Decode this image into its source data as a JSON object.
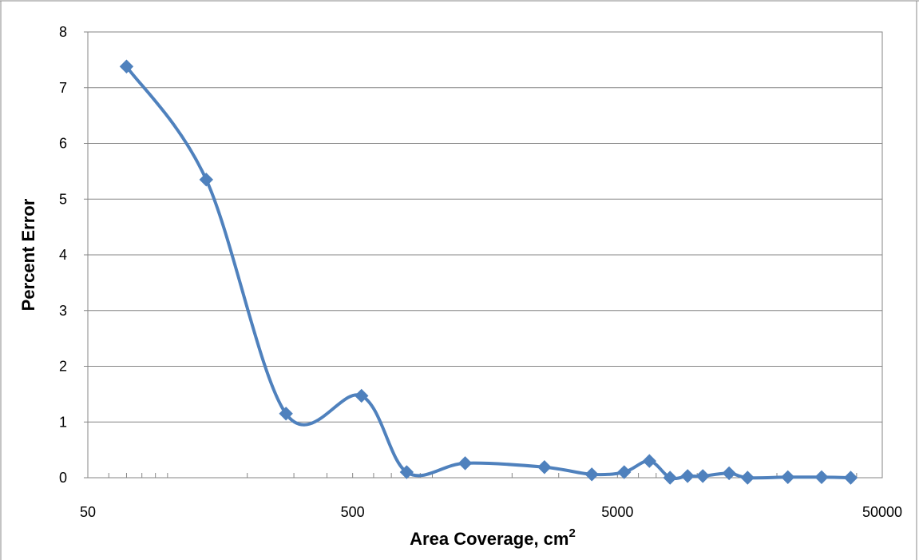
{
  "chart_data": {
    "type": "line",
    "xlabel": "Area Coverage, cm",
    "xlabel_superscript": "2",
    "ylabel": "Percent Error",
    "x_scale": "log",
    "xlim": [
      50,
      50000
    ],
    "ylim": [
      0,
      8
    ],
    "x_ticks": [
      {
        "value": 50,
        "label": "50"
      },
      {
        "value": 500,
        "label": "500"
      },
      {
        "value": 5000,
        "label": "5000"
      },
      {
        "value": 50000,
        "label": "50000"
      }
    ],
    "y_ticks": [
      {
        "value": 0,
        "label": "0"
      },
      {
        "value": 1,
        "label": "1"
      },
      {
        "value": 2,
        "label": "2"
      },
      {
        "value": 3,
        "label": "3"
      },
      {
        "value": 4,
        "label": "4"
      },
      {
        "value": 5,
        "label": "5"
      },
      {
        "value": 6,
        "label": "6"
      },
      {
        "value": 7,
        "label": "7"
      },
      {
        "value": 8,
        "label": "8"
      }
    ],
    "grid": {
      "horizontal": true,
      "vertical": false
    },
    "smooth": true,
    "series": [
      {
        "color": "#4f81bd",
        "marker": "diamond",
        "x": [
          70,
          140,
          280,
          540,
          800,
          1330,
          2650,
          4000,
          5300,
          6600,
          7900,
          9200,
          10500,
          13200,
          15500,
          22000,
          29500,
          38000
        ],
        "y": [
          7.38,
          5.35,
          1.15,
          1.47,
          0.1,
          0.26,
          0.19,
          0.06,
          0.1,
          0.3,
          0.0,
          0.03,
          0.03,
          0.08,
          0.0,
          0.01,
          0.01,
          0.0
        ]
      }
    ]
  }
}
